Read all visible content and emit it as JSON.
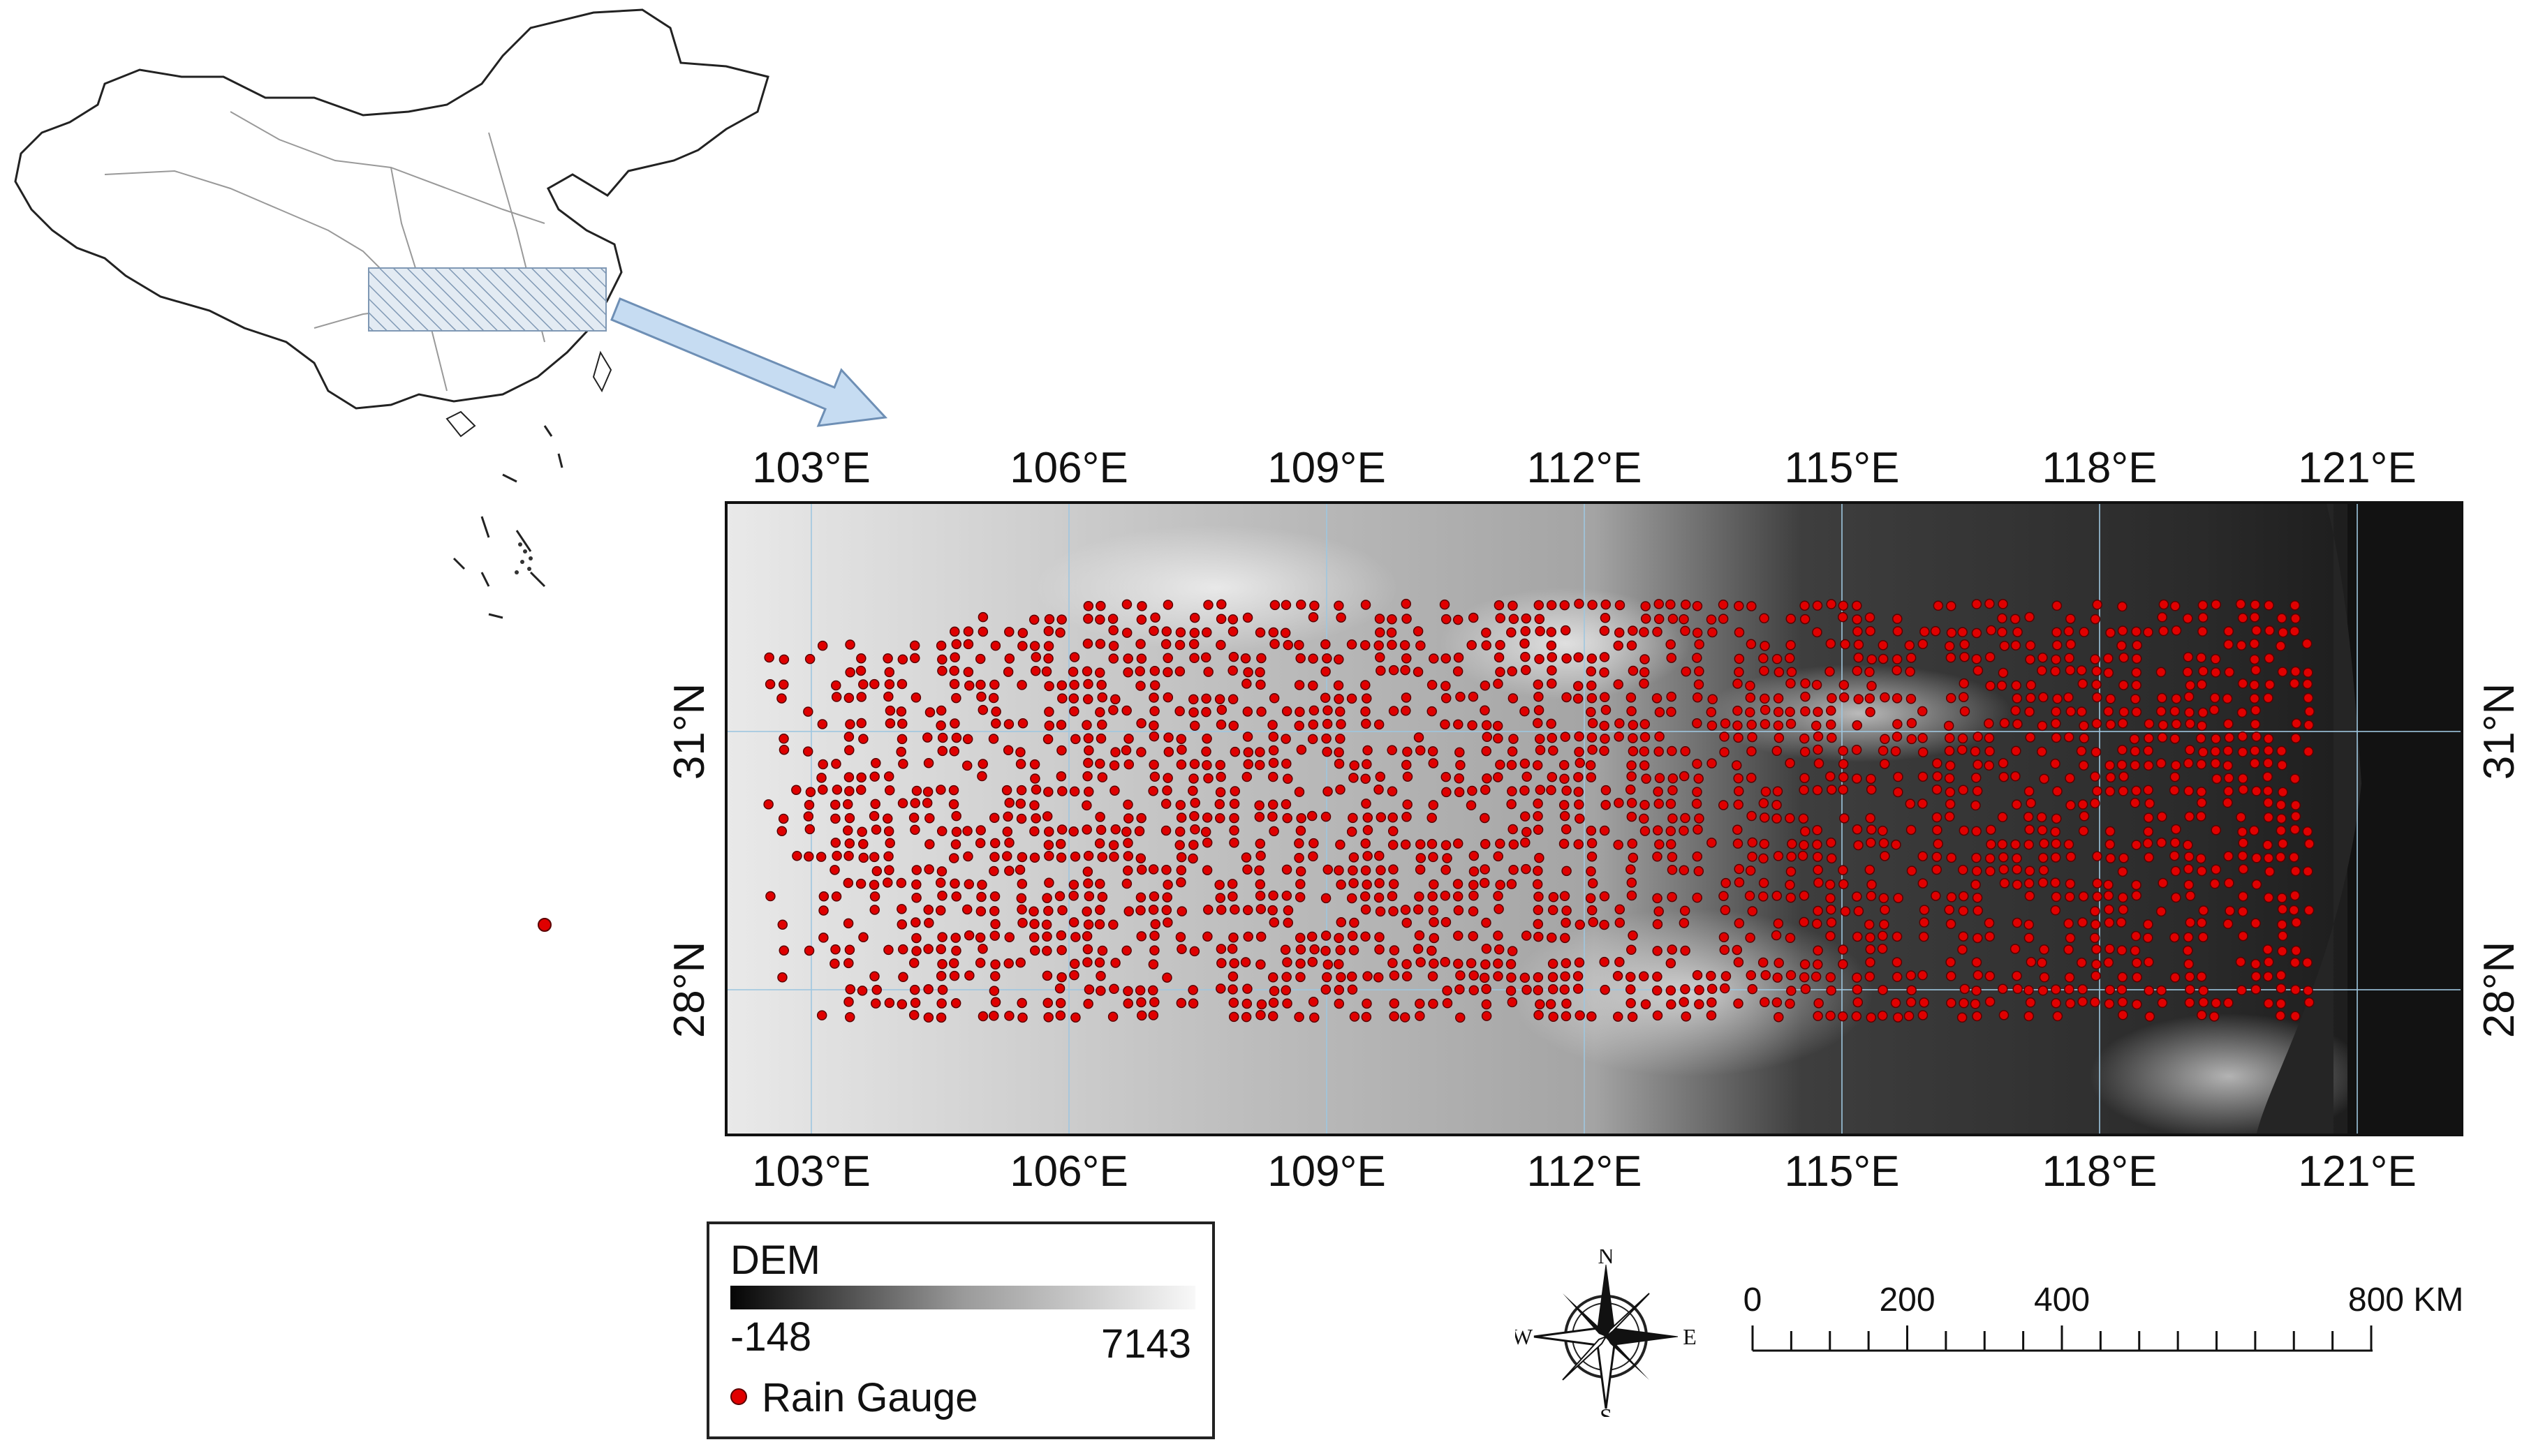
{
  "top_longitudes": [
    "103°E",
    "106°E",
    "109°E",
    "112°E",
    "115°E",
    "118°E",
    "121°E"
  ],
  "bottom_longitudes": [
    "103°E",
    "106°E",
    "109°E",
    "112°E",
    "115°E",
    "118°E",
    "121°E"
  ],
  "left_latitudes": [
    "31°N",
    "28°N"
  ],
  "right_latitudes": [
    "31°N",
    "28°N"
  ],
  "legend": {
    "dem_title": "DEM",
    "dem_min": "-148",
    "dem_max": "7143",
    "gauge_label": "Rain Gauge"
  },
  "scale_bar": {
    "labels": [
      "0",
      "200",
      "400",
      "800 KM"
    ],
    "label_values": [
      0,
      200,
      400,
      800
    ],
    "max_value": 800
  },
  "compass": {
    "n": "N",
    "s": "S",
    "e": "E",
    "w": "W"
  },
  "colors": {
    "gauge_fill": "#e00000",
    "gauge_outline": "#5a0000",
    "study_area_hatch": "#7f98b4",
    "arrow_fill": "#c6dcf2",
    "arrow_stroke": "#6e8fb5",
    "graticule": "#9fc7e0"
  }
}
